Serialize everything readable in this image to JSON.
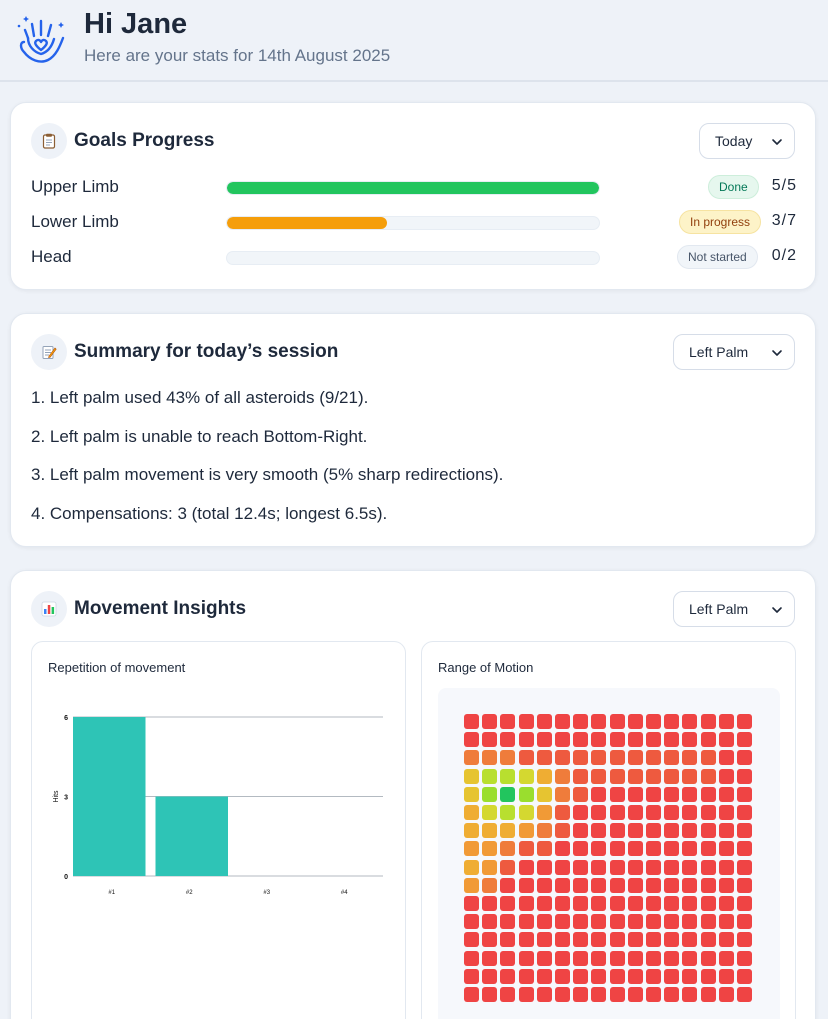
{
  "header": {
    "greeting": "Hi Jane",
    "subtitle": "Here are your stats for 14th August 2025",
    "logo_icon": "hand-heart-icon"
  },
  "goals": {
    "icon": "clipboard-icon",
    "title": "Goals Progress",
    "period_select": "Today",
    "rows": [
      {
        "label": "Upper Limb",
        "progress": 1.0,
        "status": "Done",
        "count": "5/5",
        "color": "#22c55e",
        "badge_bg": "#e6f7ee",
        "badge_fg": "#047857"
      },
      {
        "label": "Lower Limb",
        "progress": 0.43,
        "status": "In progress",
        "count": "3/7",
        "color": "#f59e0b",
        "badge_bg": "#fdf3c8",
        "badge_fg": "#92400e"
      },
      {
        "label": "Head",
        "progress": 0.0,
        "status": "Not started",
        "count": "0/2",
        "color": "#cbd5e1",
        "badge_bg": "#f1f5f9",
        "badge_fg": "#475569"
      }
    ]
  },
  "summary": {
    "icon": "memo-icon",
    "title": "Summary for today’s session",
    "select": "Left Palm",
    "lines": [
      "1. Left palm used 43% of all asteroids (9/21).",
      "2. Left palm is unable to reach Bottom-Right.",
      "3. Left palm movement is very smooth (5% sharp redirections).",
      "4. Compensations: 3 (total 12.4s; longest 6.5s)."
    ]
  },
  "insights": {
    "icon": "bar-chart-icon",
    "title": "Movement Insights",
    "select": "Left Palm",
    "repetition_title": "Repetition of movement",
    "range_title": "Range of Motion"
  },
  "chart_data": [
    {
      "type": "bar",
      "title": "Repetition of movement",
      "categories": [
        "#1",
        "#2",
        "#3",
        "#4"
      ],
      "values": [
        6,
        3,
        0,
        0
      ],
      "xlabel": "",
      "ylabel": "Hits",
      "ylim": [
        0,
        6
      ],
      "yticks": [
        "0",
        "3",
        "6"
      ],
      "grid": true,
      "bar_color": "#2ec4b6"
    },
    {
      "type": "heatmap",
      "title": "Range of Motion",
      "rows": 16,
      "cols": 16,
      "values": [
        [
          0,
          0,
          0,
          0,
          0,
          0,
          0,
          0,
          0,
          0,
          0,
          0,
          0,
          0,
          0,
          0
        ],
        [
          0,
          0,
          0,
          0,
          0,
          0,
          0,
          0,
          0,
          0,
          0,
          0,
          0,
          0,
          0,
          0
        ],
        [
          2,
          2,
          2,
          1,
          1,
          1,
          1,
          1,
          1,
          1,
          1,
          1,
          1,
          1,
          0,
          0
        ],
        [
          5,
          7,
          7,
          6,
          4,
          2,
          1,
          1,
          1,
          1,
          1,
          1,
          1,
          1,
          0,
          0
        ],
        [
          5,
          8,
          10,
          8,
          5,
          2,
          1,
          0,
          0,
          0,
          0,
          0,
          0,
          0,
          0,
          0
        ],
        [
          4,
          6,
          7,
          6,
          3,
          1,
          0,
          0,
          0,
          0,
          0,
          0,
          0,
          0,
          0,
          0
        ],
        [
          4,
          4,
          4,
          3,
          2,
          1,
          0,
          0,
          0,
          0,
          0,
          0,
          0,
          0,
          0,
          0
        ],
        [
          3,
          3,
          2,
          1,
          1,
          0,
          0,
          0,
          0,
          0,
          0,
          0,
          0,
          0,
          0,
          0
        ],
        [
          4,
          3,
          1,
          0,
          0,
          0,
          0,
          0,
          0,
          0,
          0,
          0,
          0,
          0,
          0,
          0
        ],
        [
          3,
          2,
          0,
          0,
          0,
          0,
          0,
          0,
          0,
          0,
          0,
          0,
          0,
          0,
          0,
          0
        ],
        [
          0,
          0,
          0,
          0,
          0,
          0,
          0,
          0,
          0,
          0,
          0,
          0,
          0,
          0,
          0,
          0
        ],
        [
          0,
          0,
          0,
          0,
          0,
          0,
          0,
          0,
          0,
          0,
          0,
          0,
          0,
          0,
          0,
          0
        ],
        [
          0,
          0,
          0,
          0,
          0,
          0,
          0,
          0,
          0,
          0,
          0,
          0,
          0,
          0,
          0,
          0
        ],
        [
          0,
          0,
          0,
          0,
          0,
          0,
          0,
          0,
          0,
          0,
          0,
          0,
          0,
          0,
          0,
          0
        ],
        [
          0,
          0,
          0,
          0,
          0,
          0,
          0,
          0,
          0,
          0,
          0,
          0,
          0,
          0,
          0,
          0
        ],
        [
          0,
          0,
          0,
          0,
          0,
          0,
          0,
          0,
          0,
          0,
          0,
          0,
          0,
          0,
          0,
          0
        ]
      ],
      "scale_colors": [
        "#ef4444",
        "#22c55e"
      ]
    }
  ]
}
